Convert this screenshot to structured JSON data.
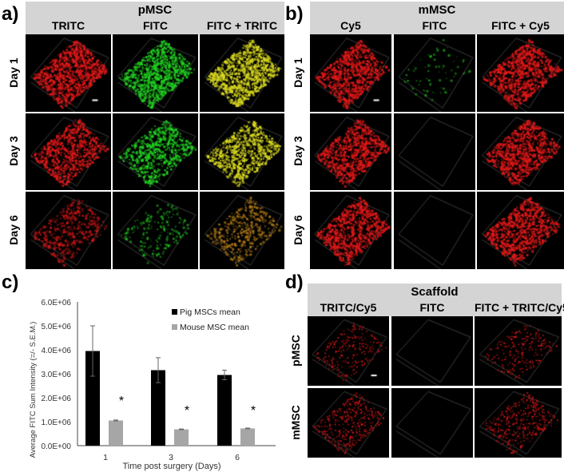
{
  "panels": {
    "a": {
      "label": "a)",
      "title": "pMSC",
      "columns": [
        "TRITC",
        "FITC",
        "FITC + TRITC"
      ],
      "rows": [
        "Day 1",
        "Day 3",
        "Day 6"
      ],
      "signals": [
        [
          "red",
          "green",
          "yellow"
        ],
        [
          "red",
          "green",
          "yellow"
        ],
        [
          "red-dim",
          "green-dim",
          "orange-dim"
        ]
      ],
      "density": [
        [
          1,
          1,
          1
        ],
        [
          0.8,
          0.7,
          0.8
        ],
        [
          0.5,
          0.2,
          0.5
        ]
      ]
    },
    "b": {
      "label": "b)",
      "title": "mMSC",
      "columns": [
        "Cy5",
        "FITC",
        "FITC + Cy5"
      ],
      "rows": [
        "Day 1",
        "Day 3",
        "Day 6"
      ],
      "signals": [
        [
          "red",
          "green-dim",
          "red"
        ],
        [
          "red",
          "none",
          "red"
        ],
        [
          "red",
          "none",
          "red"
        ]
      ],
      "density": [
        [
          0.9,
          0.08,
          0.9
        ],
        [
          0.9,
          0,
          0.9
        ],
        [
          0.9,
          0,
          0.9
        ]
      ]
    },
    "d": {
      "label": "d)",
      "title": "Scaffold",
      "columns": [
        "TRITC/Cy5",
        "FITC",
        "FITC + TRITC/Cy5"
      ],
      "rows": [
        "pMSC",
        "mMSC"
      ],
      "signals": [
        [
          "red-sparse",
          "none",
          "red-sparse"
        ],
        [
          "red-sparse",
          "none",
          "red-sparse"
        ]
      ],
      "density": [
        [
          0.25,
          0,
          0.25
        ],
        [
          0.4,
          0,
          0.4
        ]
      ]
    },
    "c": {
      "label": "c)"
    }
  },
  "colors": {
    "red": "#e01818",
    "green": "#22d022",
    "yellow": "#d8d820",
    "orange": "#c88a18",
    "header": "#d4d4d4",
    "pig_bar": "#000000",
    "mouse_bar": "#a6a6a6"
  },
  "chart_data": {
    "type": "bar",
    "title": "",
    "xlabel": "Time post surgery (Days)",
    "ylabel": "Average FITC Sum Intensity (=/- S.E.M.)",
    "categories": [
      "1",
      "3",
      "6"
    ],
    "ylim": [
      0,
      6000000
    ],
    "yticks": [
      "0.0E+00",
      "1.0E+06",
      "2.0E+06",
      "3.0E+06",
      "4.0E+06",
      "5.0E+06",
      "6.0E+06"
    ],
    "series": [
      {
        "name": "Pig MSCs mean",
        "values": [
          3950000,
          3150000,
          2950000
        ],
        "errors": [
          1050000,
          520000,
          200000
        ]
      },
      {
        "name": "Mouse MSC mean",
        "values": [
          1050000,
          680000,
          720000
        ],
        "errors": [
          20000,
          15000,
          15000
        ]
      }
    ],
    "annotations": [
      "*",
      "*",
      "*"
    ],
    "legend": "top-right",
    "grid": false
  }
}
